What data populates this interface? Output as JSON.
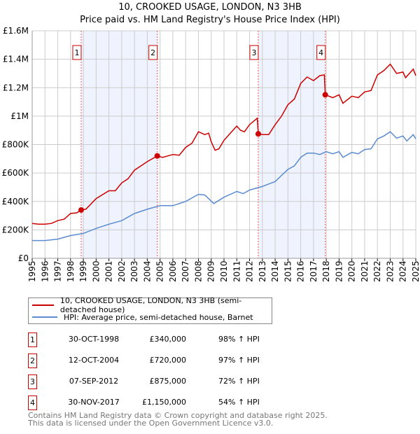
{
  "title": "10, CROOKED USAGE, LONDON, N3 3HB",
  "subtitle": "Price paid vs. HM Land Registry's House Price Index (HPI)",
  "chart_data": {
    "type": "line",
    "title": "10, CROOKED USAGE, LONDON, N3 3HB",
    "subtitle": "Price paid vs. HM Land Registry's House Price Index (HPI)",
    "xlim": [
      1995,
      2025
    ],
    "ylim": [
      0,
      1600000
    ],
    "x_ticks": [
      "1995",
      "1996",
      "1997",
      "1998",
      "1999",
      "2000",
      "2001",
      "2002",
      "2003",
      "2004",
      "2005",
      "2006",
      "2007",
      "2008",
      "2009",
      "2010",
      "2011",
      "2012",
      "2013",
      "2014",
      "2015",
      "2016",
      "2017",
      "2018",
      "2019",
      "2020",
      "2021",
      "2022",
      "2023",
      "2024",
      "2025"
    ],
    "y_ticks": [
      {
        "v": 0,
        "label": "£0"
      },
      {
        "v": 200000,
        "label": "£200K"
      },
      {
        "v": 400000,
        "label": "£400K"
      },
      {
        "v": 600000,
        "label": "£600K"
      },
      {
        "v": 800000,
        "label": "£800K"
      },
      {
        "v": 1000000,
        "label": "£1M"
      },
      {
        "v": 1200000,
        "label": "£1.2M"
      },
      {
        "v": 1400000,
        "label": "£1.4M"
      },
      {
        "v": 1600000,
        "label": "£1.6M"
      }
    ],
    "grid": true,
    "colors": {
      "property": "#cc0000",
      "hpi": "#5b8bd0",
      "shade": "#eef3fd"
    },
    "shaded_ranges": [
      [
        1998.83,
        2004.78
      ],
      [
        2012.68,
        2017.92
      ]
    ],
    "series": [
      {
        "name": "10, CROOKED USAGE, LONDON, N3 3HB (semi-detached house)",
        "key": "property",
        "x": [
          1995,
          1995.5,
          1996,
          1996.5,
          1997,
          1997.5,
          1998,
          1998.5,
          1998.83,
          1999.2,
          2000,
          2001,
          2001.5,
          2002,
          2002.5,
          2003,
          2003.5,
          2004,
          2004.78,
          2005.2,
          2006,
          2006.5,
          2007,
          2007.5,
          2008,
          2008.5,
          2008.8,
          2009,
          2009.3,
          2009.6,
          2010,
          2010.5,
          2011,
          2011.3,
          2011.6,
          2012,
          2012.6,
          2012.68,
          2013,
          2013.5,
          2014,
          2014.5,
          2015,
          2015.5,
          2016,
          2016.5,
          2017,
          2017.5,
          2017.85,
          2017.92,
          2018.5,
          2019,
          2019.3,
          2020,
          2020.5,
          2021,
          2021.5,
          2022,
          2022.5,
          2023,
          2023.5,
          2024,
          2024.2,
          2024.8,
          2025
        ],
        "y": [
          245000,
          240000,
          240000,
          245000,
          265000,
          275000,
          315000,
          320000,
          340000,
          345000,
          420000,
          475000,
          475000,
          530000,
          560000,
          620000,
          650000,
          680000,
          720000,
          710000,
          730000,
          725000,
          780000,
          810000,
          890000,
          870000,
          880000,
          820000,
          760000,
          770000,
          830000,
          880000,
          930000,
          900000,
          890000,
          940000,
          985000,
          875000,
          870000,
          870000,
          940000,
          1000000,
          1080000,
          1120000,
          1230000,
          1275000,
          1250000,
          1285000,
          1290000,
          1150000,
          1130000,
          1150000,
          1090000,
          1140000,
          1130000,
          1170000,
          1180000,
          1290000,
          1320000,
          1365000,
          1300000,
          1310000,
          1270000,
          1330000,
          1285000
        ]
      },
      {
        "name": "HPI: Average price, semi-detached house, Barnet",
        "key": "hpi",
        "x": [
          1995,
          1996,
          1997,
          1998,
          1999,
          2000,
          2001,
          2002,
          2003,
          2004,
          2005,
          2006,
          2007,
          2008,
          2008.5,
          2009.2,
          2010,
          2011,
          2011.5,
          2012,
          2013,
          2014,
          2015,
          2015.5,
          2016,
          2016.5,
          2017,
          2017.5,
          2018,
          2018.5,
          2019,
          2019.3,
          2020,
          2020.5,
          2021,
          2021.5,
          2022,
          2022.5,
          2023,
          2023.5,
          2024,
          2024.3,
          2024.8,
          2025
        ],
        "y": [
          125000,
          125000,
          135000,
          160000,
          175000,
          210000,
          240000,
          265000,
          315000,
          345000,
          370000,
          370000,
          400000,
          450000,
          445000,
          385000,
          430000,
          470000,
          455000,
          480000,
          505000,
          540000,
          625000,
          650000,
          710000,
          740000,
          740000,
          730000,
          750000,
          735000,
          750000,
          710000,
          745000,
          735000,
          765000,
          770000,
          840000,
          860000,
          890000,
          845000,
          860000,
          825000,
          870000,
          840000
        ]
      }
    ],
    "sales": [
      {
        "n": "1",
        "x": 1998.83,
        "y": 340000,
        "date": "30-OCT-1998",
        "price": "£340,000",
        "hpi": "98% ↑ HPI"
      },
      {
        "n": "2",
        "x": 2004.78,
        "y": 720000,
        "date": "12-OCT-2004",
        "price": "£720,000",
        "hpi": "97% ↑ HPI"
      },
      {
        "n": "3",
        "x": 2012.68,
        "y": 875000,
        "date": "07-SEP-2012",
        "price": "£875,000",
        "hpi": "72% ↑ HPI"
      },
      {
        "n": "4",
        "x": 2017.92,
        "y": 1150000,
        "date": "30-NOV-2017",
        "price": "£1,150,000",
        "hpi": "54% ↑ HPI"
      }
    ]
  },
  "legend": {
    "property": "10, CROOKED USAGE, LONDON, N3 3HB (semi-detached house)",
    "hpi": "HPI: Average price, semi-detached house, Barnet"
  },
  "footer": {
    "line1": "Contains HM Land Registry data © Crown copyright and database right 2025.",
    "line2": "This data is licensed under the Open Government Licence v3.0."
  }
}
